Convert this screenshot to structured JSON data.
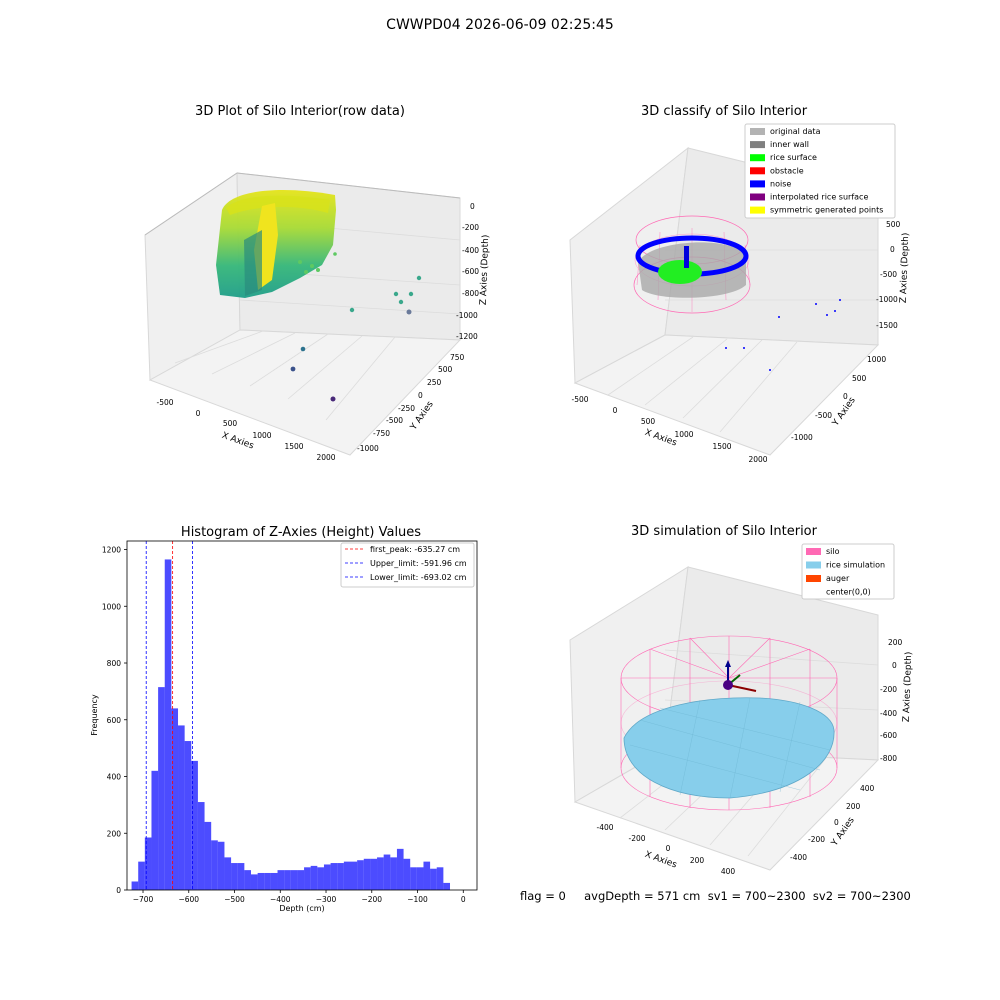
{
  "suptitle": "CWWPD04 2026-06-09 02:25:45",
  "panels": {
    "raw": {
      "title": "3D Plot of Silo Interior(row data)",
      "xlabel": "X Axies",
      "ylabel": "Y Axies",
      "zlabel": "Z Axies (Depth)",
      "xticks": [
        "-500",
        "0",
        "500",
        "1000",
        "1500",
        "2000"
      ],
      "yticks": [
        "750",
        "500",
        "250",
        "0",
        "-250",
        "-500",
        "-750",
        "-1000"
      ],
      "zticks": [
        "0",
        "-200",
        "-400",
        "-600",
        "-800",
        "-1000",
        "-1200"
      ]
    },
    "classify": {
      "title": "3D classify of Silo Interior",
      "xlabel": "X Axies",
      "ylabel": "Y Axies",
      "zlabel": "Z Axies (Depth)",
      "xticks": [
        "-500",
        "0",
        "500",
        "1000",
        "1500",
        "2000"
      ],
      "yticks": [
        "1000",
        "500",
        "0",
        "-500",
        "-1000"
      ],
      "zticks": [
        "500",
        "0",
        "-500",
        "-1000",
        "-1500"
      ],
      "legend": [
        {
          "label": "original data",
          "color": "#b3b3b3"
        },
        {
          "label": "inner wall",
          "color": "#808080"
        },
        {
          "label": "rice surface",
          "color": "#00ff00"
        },
        {
          "label": "obstacle",
          "color": "#ff0000"
        },
        {
          "label": "noise",
          "color": "#0000ff"
        },
        {
          "label": "interpolated rice surface",
          "color": "#800080"
        },
        {
          "label": "symmetric generated points",
          "color": "#ffff00"
        }
      ]
    },
    "simulation": {
      "title": "3D simulation of Silo Interior",
      "xlabel": "X Axies",
      "ylabel": "Y Axies",
      "zlabel": "Z Axies (Depth)",
      "xticks": [
        "-400",
        "-200",
        "0",
        "200",
        "400"
      ],
      "yticks": [
        "400",
        "200",
        "0",
        "-200",
        "-400"
      ],
      "zticks": [
        "200",
        "0",
        "-200",
        "-400",
        "-600",
        "-800"
      ],
      "legend": [
        {
          "label": "silo",
          "color": "#ff69b4"
        },
        {
          "label": "rice simulation",
          "color": "#87ceeb"
        },
        {
          "label": "auger",
          "color": "#ff4500"
        },
        {
          "label": "center(0,0)",
          "color": "#ffffff"
        }
      ]
    }
  },
  "chart_data": {
    "type": "bar",
    "title": "Histogram of Z-Axies (Height) Values",
    "xlabel": "Depth (cm)",
    "ylabel": "Frequency",
    "xlim": [
      -735,
      30
    ],
    "ylim": [
      0,
      1230
    ],
    "xticks": [
      -700,
      -600,
      -500,
      -400,
      -300,
      -200,
      -100,
      0
    ],
    "yticks": [
      0,
      200,
      400,
      600,
      800,
      1000,
      1200
    ],
    "bar_color": "#0000ff",
    "bin_start": -725,
    "bin_width": 14.5,
    "counts": [
      30,
      100,
      185,
      420,
      715,
      1165,
      640,
      580,
      525,
      455,
      310,
      240,
      175,
      170,
      115,
      95,
      95,
      70,
      55,
      60,
      60,
      60,
      70,
      70,
      70,
      70,
      80,
      85,
      80,
      90,
      95,
      95,
      100,
      100,
      105,
      110,
      110,
      115,
      125,
      115,
      145,
      110,
      80,
      80,
      100,
      75,
      80,
      25
    ],
    "vlines": [
      {
        "label": "first_peak: -635.27 cm",
        "x": -635.27,
        "color": "#ff0000"
      },
      {
        "label": "Upper_limit: -591.96 cm",
        "x": -591.96,
        "color": "#0000ff"
      },
      {
        "label": "Lower_limit: -693.02 cm",
        "x": -693.02,
        "color": "#0000ff"
      }
    ],
    "legend_position": "top-right"
  },
  "footer": {
    "text": "flag = 0     avgDepth = 571 cm  sv1 = 700~2300  sv2 = 700~2300"
  }
}
